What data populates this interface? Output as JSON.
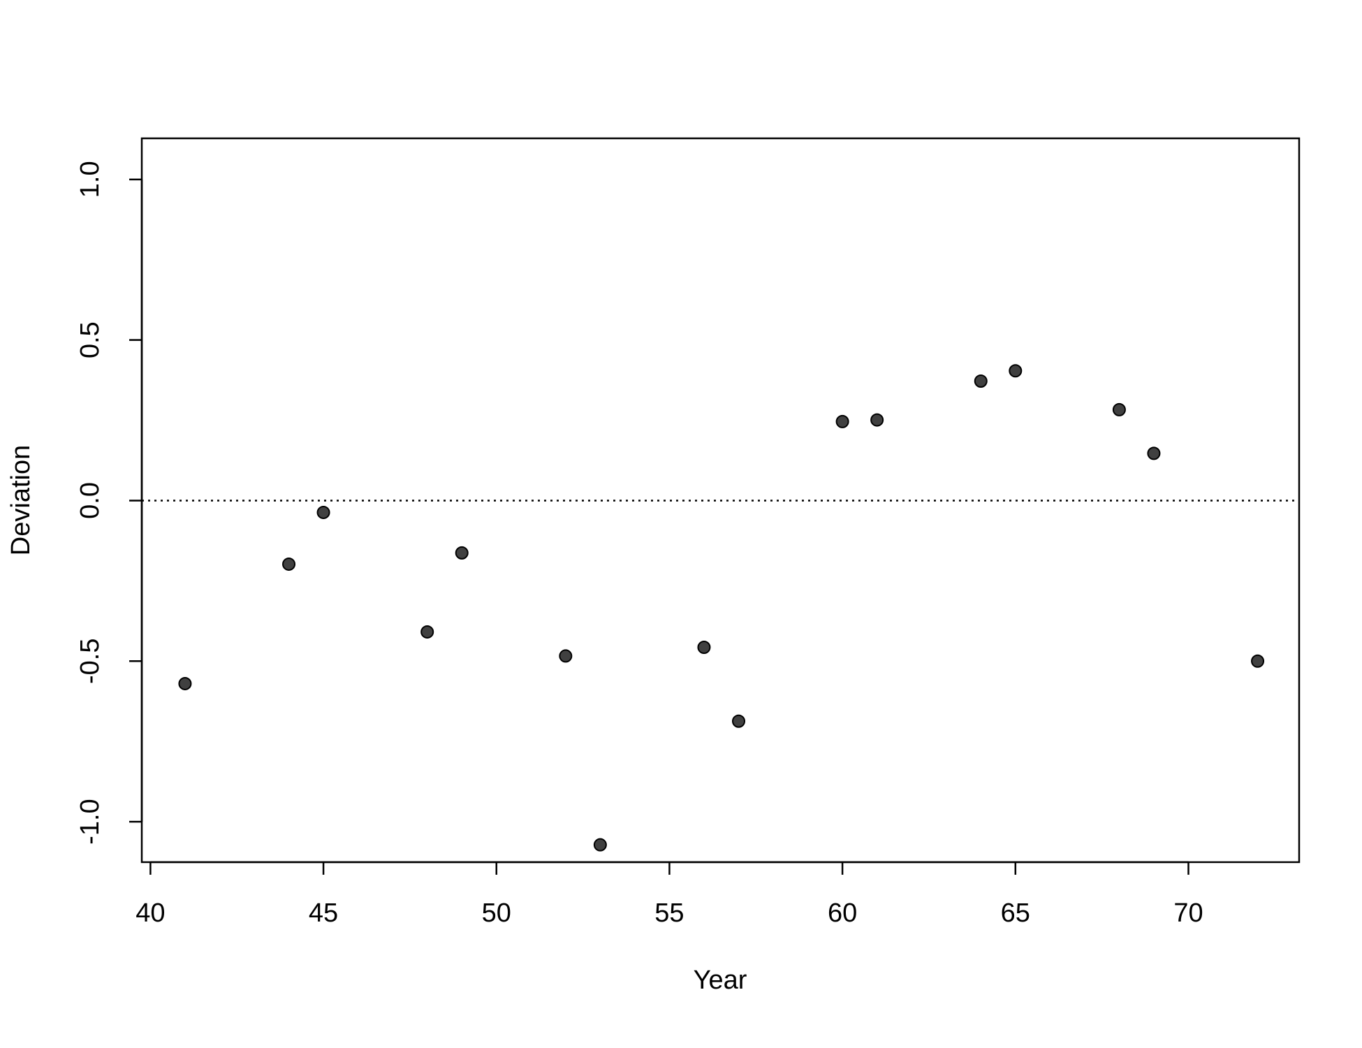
{
  "chart_data": {
    "type": "scatter",
    "x_label": "Year",
    "y_label": "Deviation",
    "x": [
      41,
      44,
      45,
      48,
      49,
      52,
      53,
      56,
      57,
      60,
      61,
      64,
      65,
      68,
      69,
      72
    ],
    "values": [
      -0.57,
      -0.198,
      -0.037,
      -0.409,
      -0.163,
      -0.484,
      -1.072,
      -0.457,
      -0.687,
      0.246,
      0.251,
      0.372,
      0.404,
      0.283,
      0.147,
      -0.5
    ],
    "color": "#404040",
    "xlim": [
      39.75,
      73.2
    ],
    "ylim": [
      -1.126,
      1.128
    ],
    "xticks": [
      40,
      45,
      50,
      55,
      60,
      65,
      70
    ],
    "yticks": [
      {
        "value": -1,
        "label": "-1.0"
      },
      {
        "value": -0.5,
        "label": "-0.5"
      },
      {
        "value": 0,
        "label": "0.0"
      },
      {
        "value": 0.5,
        "label": "0.5"
      },
      {
        "value": 1,
        "label": "1.0"
      }
    ],
    "hline": 0
  }
}
